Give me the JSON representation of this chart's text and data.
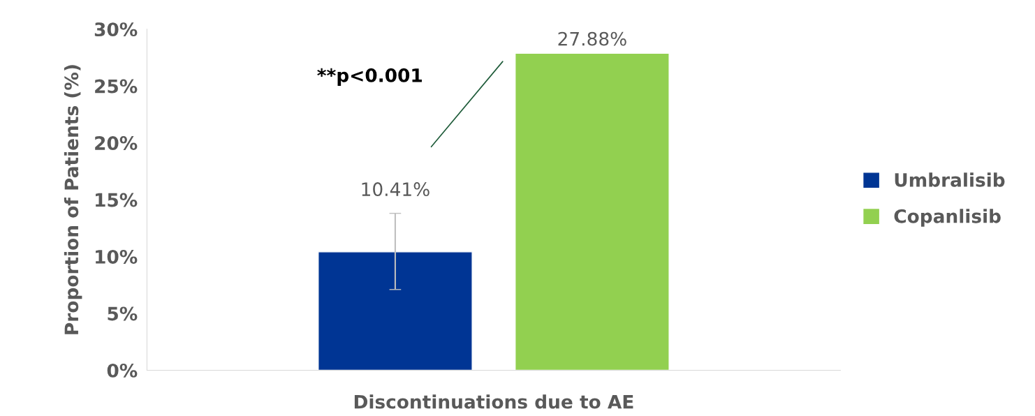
{
  "chart_data": {
    "type": "bar",
    "ylabel": "Proportion of Patients (%)",
    "categories": [
      "Discontinuations due to AE"
    ],
    "series": [
      {
        "name": "Umbralisib",
        "color": "#003594",
        "values": [
          10.41
        ],
        "errors": [
          [
            7.1,
            13.8
          ]
        ],
        "value_labels": [
          "10.41%"
        ]
      },
      {
        "name": "Copanlisib",
        "color": "#92d050",
        "values": [
          27.88
        ],
        "value_labels": [
          "27.88%"
        ]
      }
    ],
    "ylim": [
      0,
      30
    ],
    "yticks": [
      {
        "value": 0,
        "label": "0%"
      },
      {
        "value": 5,
        "label": "5%"
      },
      {
        "value": 10,
        "label": "10%"
      },
      {
        "value": 15,
        "label": "15%"
      },
      {
        "value": 20,
        "label": "20%"
      },
      {
        "value": 25,
        "label": "25%"
      },
      {
        "value": 30,
        "label": "30%"
      }
    ],
    "annotations": [
      "**p<0.001"
    ],
    "grid": false,
    "legend": "right"
  }
}
